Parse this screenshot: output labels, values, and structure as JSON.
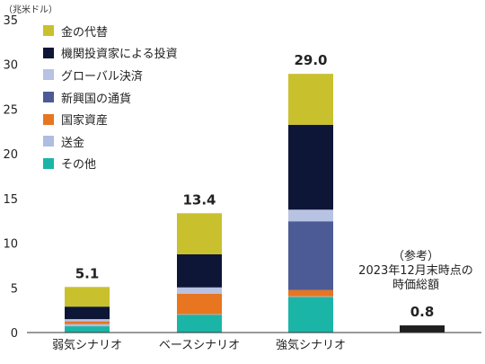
{
  "unit": "（兆米ドル）",
  "chart_data": {
    "type": "bar",
    "stacked": true,
    "ylim": [
      0,
      35
    ],
    "yticks": [
      0,
      5,
      10,
      15,
      20,
      25,
      30,
      35
    ],
    "grid": false,
    "categories": [
      "弱気シナリオ",
      "ベースシナリオ",
      "強気シナリオ",
      ""
    ],
    "totals_labels": [
      "5.1",
      "13.4",
      "29.0",
      "0.8"
    ],
    "series": [
      {
        "name": "その他",
        "color": "#1bb5a8",
        "values": [
          0.7,
          2.0,
          4.0,
          0
        ]
      },
      {
        "name": "送金",
        "color": "#aebde0",
        "values": [
          0.25,
          0.05,
          0.05,
          0
        ]
      },
      {
        "name": "国家資産",
        "color": "#e8751f",
        "values": [
          0.3,
          2.3,
          0.7,
          0
        ]
      },
      {
        "name": "新興国の通貨",
        "color": "#4c5b96",
        "values": [
          0,
          0,
          7.7,
          0
        ]
      },
      {
        "name": "グローバル決済",
        "color": "#b8c2e2",
        "values": [
          0.25,
          0.7,
          1.3,
          0
        ]
      },
      {
        "name": "機関投資家による投資",
        "color": "#0d1637",
        "values": [
          1.4,
          3.7,
          9.5,
          0
        ]
      },
      {
        "name": "金の代替",
        "color": "#c9c02d",
        "values": [
          2.2,
          4.6,
          5.7,
          0
        ]
      },
      {
        "name": "",
        "color": "#1f1f1f",
        "values": [
          0,
          0,
          0,
          0.8
        ]
      }
    ],
    "legend_order": [
      "金の代替",
      "機関投資家による投資",
      "グローバル決済",
      "新興国の通貨",
      "国家資産",
      "送金",
      "その他"
    ],
    "legend_position": "top-left",
    "annotation": "（参考）\n2023年12月末時点の\n時価総額"
  }
}
